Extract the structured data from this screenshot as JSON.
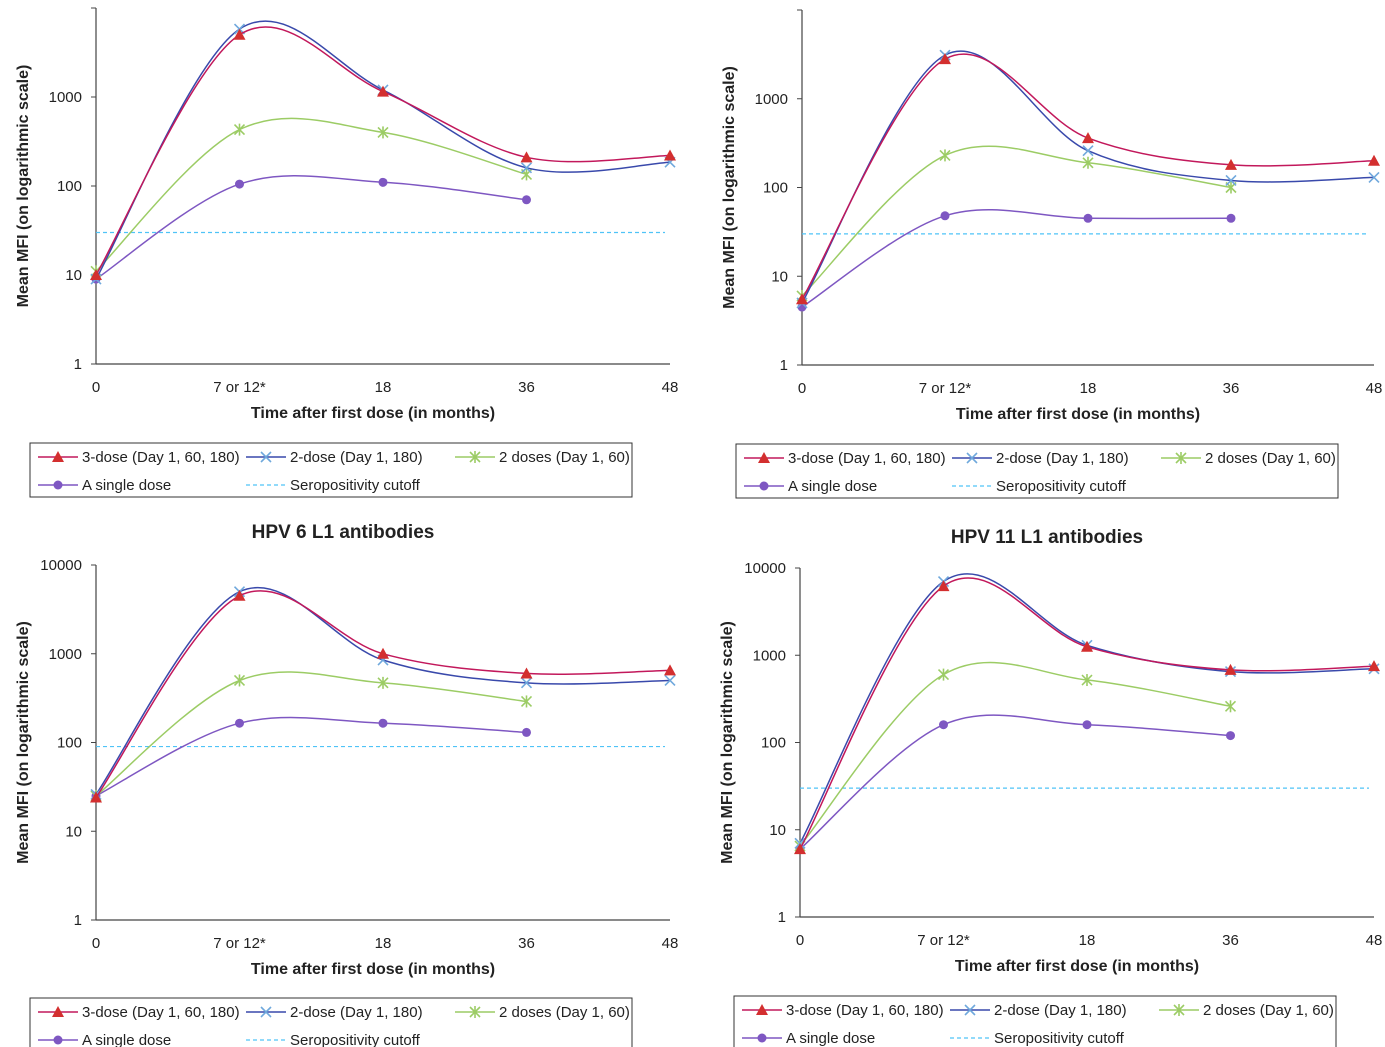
{
  "colors": {
    "three_dose": "#c2185b",
    "three_dose_marker": "#d32f2f",
    "two_dose_180": "#3949ab",
    "two_doses_60": "#9ccc65",
    "single_dose": "#7e57c2",
    "cutoff": "#4fc3f7"
  },
  "legend_labels": {
    "three_dose": "3-dose (Day 1, 60, 180)",
    "two_dose_180": "2-dose (Day 1, 180)",
    "two_doses_60": "2 doses (Day 1, 60)",
    "single_dose": "A single dose",
    "cutoff": "Seropositivity cutoff"
  },
  "chart_data": [
    {
      "type": "line",
      "title": "",
      "xlabel": "Time after first dose (in months)",
      "ylabel": "Mean MFI (on logarithmic scale)",
      "x": [
        0,
        7,
        18,
        36,
        48
      ],
      "x_tick_labels": [
        "0",
        "7 or 12*",
        "18",
        "36",
        "48"
      ],
      "y_scale": "log",
      "ylim": [
        1,
        10000
      ],
      "y_tick_labels": [
        "1",
        "10",
        "100",
        "1000",
        ""
      ],
      "cutoff": 30,
      "series": [
        {
          "key": "three_dose",
          "name": "3-dose (Day 1, 60, 180)",
          "values": [
            10,
            5000,
            1150,
            210,
            220
          ]
        },
        {
          "key": "two_dose_180",
          "name": "2-dose (Day 1, 180)",
          "values": [
            9,
            5800,
            1200,
            160,
            185
          ]
        },
        {
          "key": "two_doses_60",
          "name": "2 doses (Day 1, 60)",
          "values": [
            11,
            430,
            400,
            135,
            null
          ]
        },
        {
          "key": "single_dose",
          "name": "A single dose",
          "values": [
            9,
            105,
            110,
            70,
            null
          ]
        }
      ]
    },
    {
      "type": "line",
      "title": "",
      "xlabel": "Time after first dose (in months)",
      "ylabel": "Mean MFI (on logarithmic scale)",
      "x": [
        0,
        7,
        18,
        36,
        48
      ],
      "x_tick_labels": [
        "0",
        "7 or 12*",
        "18",
        "36",
        "48"
      ],
      "y_scale": "log",
      "ylim": [
        1,
        10000
      ],
      "y_tick_labels": [
        "1",
        "10",
        "100",
        "1000",
        ""
      ],
      "cutoff": 30,
      "series": [
        {
          "key": "three_dose",
          "name": "3-dose (Day 1, 60, 180)",
          "values": [
            5.5,
            2800,
            360,
            180,
            200
          ]
        },
        {
          "key": "two_dose_180",
          "name": "2-dose (Day 1, 180)",
          "values": [
            5,
            3100,
            260,
            120,
            130
          ]
        },
        {
          "key": "two_doses_60",
          "name": "2 doses (Day 1, 60)",
          "values": [
            6,
            230,
            190,
            100,
            null
          ]
        },
        {
          "key": "single_dose",
          "name": "A single dose",
          "values": [
            4.5,
            48,
            45,
            45,
            null
          ]
        }
      ]
    },
    {
      "type": "line",
      "title": "HPV 6 L1 antibodies",
      "xlabel": "Time after first dose (in months)",
      "ylabel": "Mean MFI (on logarithmic scale)",
      "x": [
        0,
        7,
        18,
        36,
        48
      ],
      "x_tick_labels": [
        "0",
        "7 or 12*",
        "18",
        "36",
        "48"
      ],
      "y_scale": "log",
      "ylim": [
        1,
        10000
      ],
      "y_tick_labels": [
        "1",
        "10",
        "100",
        "1000",
        "10000"
      ],
      "cutoff": 90,
      "series": [
        {
          "key": "three_dose",
          "name": "3-dose (Day 1, 60, 180)",
          "values": [
            24,
            4500,
            1000,
            600,
            650
          ]
        },
        {
          "key": "two_dose_180",
          "name": "2-dose (Day 1, 180)",
          "values": [
            26,
            5000,
            850,
            470,
            500
          ]
        },
        {
          "key": "two_doses_60",
          "name": "2 doses (Day 1, 60)",
          "values": [
            25,
            500,
            470,
            290,
            null
          ]
        },
        {
          "key": "single_dose",
          "name": "A single dose",
          "values": [
            25,
            165,
            165,
            130,
            null
          ]
        }
      ]
    },
    {
      "type": "line",
      "title": "HPV 11 L1 antibodies",
      "xlabel": "Time after first dose (in months)",
      "ylabel": "Mean MFI (on logarithmic scale)",
      "x": [
        0,
        7,
        18,
        36,
        48
      ],
      "x_tick_labels": [
        "0",
        "7 or 12*",
        "18",
        "36",
        "48"
      ],
      "y_scale": "log",
      "ylim": [
        1,
        10000
      ],
      "y_tick_labels": [
        "1",
        "10",
        "100",
        "1000",
        "10000"
      ],
      "cutoff": 30,
      "series": [
        {
          "key": "three_dose",
          "name": "3-dose (Day 1, 60, 180)",
          "values": [
            6,
            6200,
            1250,
            680,
            750
          ]
        },
        {
          "key": "two_dose_180",
          "name": "2-dose (Day 1, 180)",
          "values": [
            7,
            7000,
            1300,
            650,
            700
          ]
        },
        {
          "key": "two_doses_60",
          "name": "2 doses (Day 1, 60)",
          "values": [
            6.5,
            600,
            520,
            260,
            null
          ]
        },
        {
          "key": "single_dose",
          "name": "A single dose",
          "values": [
            6,
            160,
            160,
            120,
            null
          ]
        }
      ]
    }
  ]
}
